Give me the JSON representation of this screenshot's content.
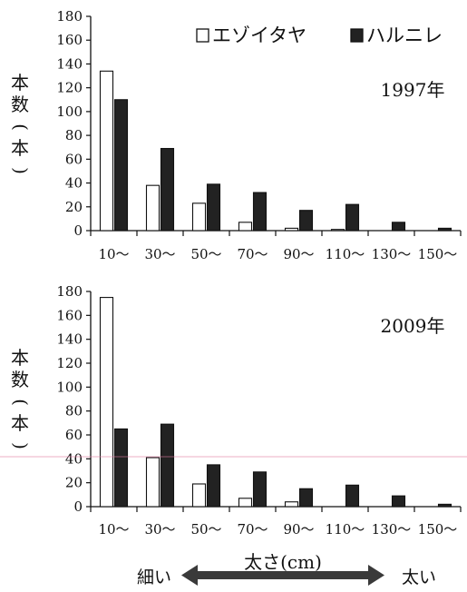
{
  "chart_data": [
    {
      "type": "bar",
      "annotation": "1997年",
      "ylabel": "本数(本)",
      "ylim": [
        0,
        180
      ],
      "yticks": [
        0,
        20,
        40,
        60,
        80,
        100,
        120,
        140,
        160,
        180
      ],
      "categories": [
        "10～",
        "30～",
        "50～",
        "70～",
        "90～",
        "110～",
        "130～",
        "150～"
      ],
      "series": [
        {
          "name": "エゾイタヤ",
          "fill": "#ffffff",
          "values": [
            134,
            38,
            23,
            7,
            2,
            1,
            0,
            0
          ]
        },
        {
          "name": "ハルニレ",
          "fill": "#222222",
          "values": [
            110,
            69,
            39,
            32,
            17,
            22,
            7,
            2
          ]
        }
      ],
      "legend": "top-right",
      "grid": false
    },
    {
      "type": "bar",
      "annotation": "2009年",
      "ylabel": "本数(本)",
      "ylim": [
        0,
        180
      ],
      "yticks": [
        0,
        20,
        40,
        60,
        80,
        100,
        120,
        140,
        160,
        180
      ],
      "categories": [
        "10～",
        "30～",
        "50～",
        "70～",
        "90～",
        "110～",
        "130～",
        "150～"
      ],
      "series": [
        {
          "name": "エゾイタヤ",
          "fill": "#ffffff",
          "values": [
            175,
            41,
            19,
            7,
            4,
            0,
            0,
            0
          ]
        },
        {
          "name": "ハルニレ",
          "fill": "#222222",
          "values": [
            65,
            69,
            35,
            29,
            15,
            18,
            9,
            2
          ]
        }
      ],
      "legend": "none",
      "grid": false
    }
  ],
  "footer": {
    "xlabel": "太さ(cm)",
    "left": "細い",
    "right": "太い"
  },
  "colors": {
    "axis": "#111111",
    "arrow": "#3a3a3a",
    "guide_line": "#e07aa0"
  }
}
